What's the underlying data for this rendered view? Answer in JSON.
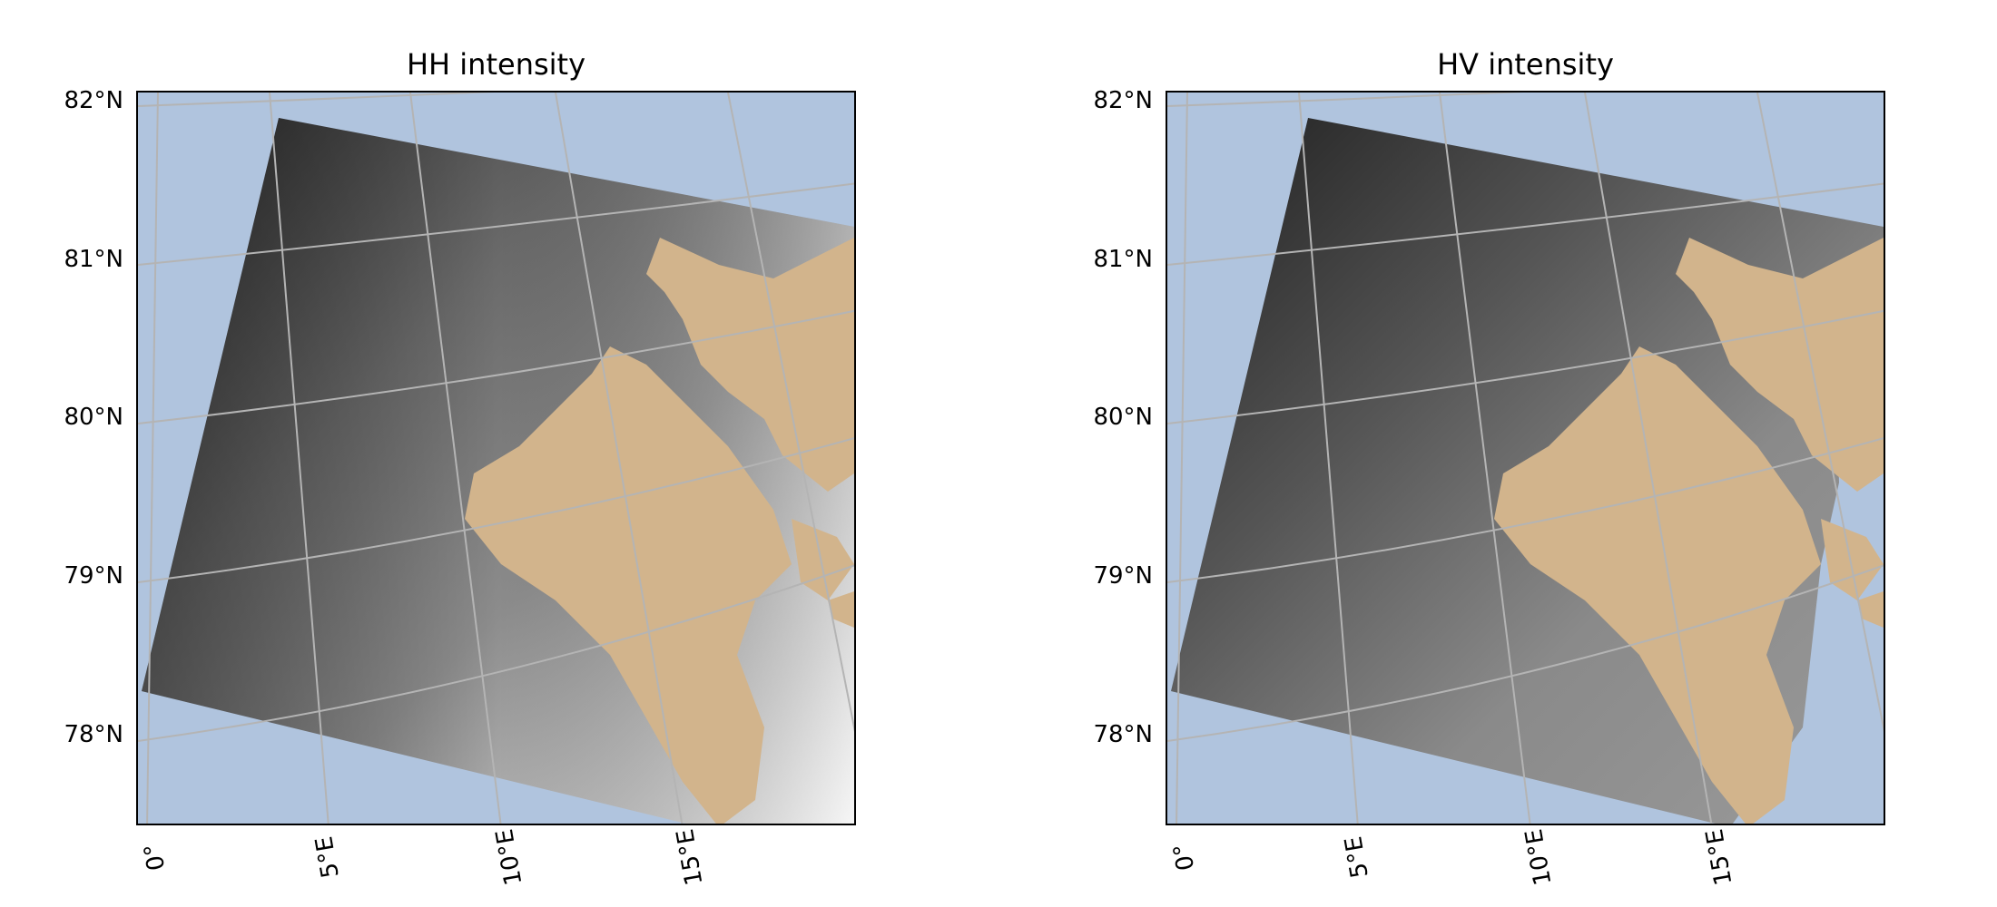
{
  "panels": [
    {
      "title": "HH intensity",
      "lat_labels": [
        "82°N",
        "81°N",
        "80°N",
        "79°N",
        "78°N"
      ],
      "lon_labels": [
        "0°",
        "5°E",
        "10°E",
        "15°E"
      ]
    },
    {
      "title": "HV intensity",
      "lat_labels": [
        "82°N",
        "81°N",
        "80°N",
        "79°N",
        "78°N"
      ],
      "lon_labels": [
        "0°",
        "5°E",
        "10°E",
        "15°E"
      ]
    }
  ],
  "colors": {
    "ocean": "#b0c4de",
    "land": "#d2b48c",
    "gridline": "#b4b4b4"
  }
}
